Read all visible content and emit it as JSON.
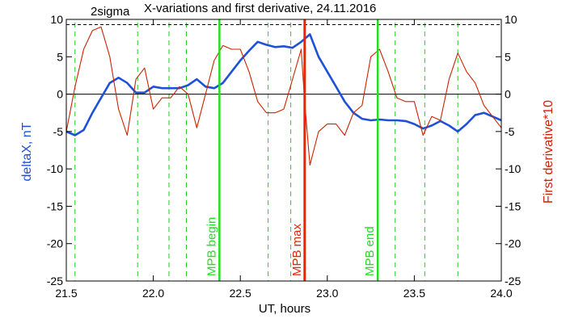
{
  "chart_data": {
    "type": "line",
    "title": "X-variations and first derivative, 24.11.2016",
    "subtitle": "2sigma",
    "xlabel": "UT, hours",
    "ylabel_left": "deltaX, nT",
    "ylabel_right": "First derivative*10",
    "xlim": [
      21.5,
      24.0
    ],
    "ylim": [
      -25,
      10
    ],
    "x_ticks": [
      "21.5",
      "22.0",
      "22.5",
      "23.0",
      "23.5",
      "24.0"
    ],
    "y_ticks": [
      "10",
      "5",
      "0",
      "-5",
      "-10",
      "-15",
      "-20",
      "-25"
    ],
    "colors": {
      "deltaX": "#1f50d8",
      "derivative": "#cc2200",
      "mpb_edges": "#22dd22",
      "mpb_max": "#ee2200",
      "sigma_lines": "#22cc22"
    },
    "dashed_reference": {
      "y": 9.3
    },
    "sigma_lines_x": [
      21.55,
      21.91,
      22.09,
      22.19,
      22.66,
      22.79,
      23.39,
      23.56,
      23.75
    ],
    "markers": [
      {
        "name": "MPB begin",
        "x": 22.38,
        "color": "#22dd22"
      },
      {
        "name": "MPB max",
        "x": 22.87,
        "color": "#ee2200"
      },
      {
        "name": "MPB end",
        "x": 23.29,
        "color": "#22dd22"
      }
    ],
    "series": [
      {
        "name": "deltaX",
        "color": "#1f50d8",
        "x": [
          21.5,
          21.55,
          21.6,
          21.65,
          21.7,
          21.75,
          21.8,
          21.85,
          21.9,
          21.95,
          22.0,
          22.05,
          22.1,
          22.15,
          22.2,
          22.25,
          22.3,
          22.35,
          22.4,
          22.45,
          22.5,
          22.55,
          22.6,
          22.65,
          22.7,
          22.75,
          22.8,
          22.85,
          22.9,
          22.95,
          23.0,
          23.05,
          23.1,
          23.15,
          23.2,
          23.25,
          23.3,
          23.35,
          23.4,
          23.45,
          23.5,
          23.55,
          23.6,
          23.65,
          23.7,
          23.75,
          23.8,
          23.85,
          23.9,
          23.95,
          24.0
        ],
        "values": [
          -5.0,
          -5.5,
          -4.8,
          -2.5,
          -0.5,
          1.5,
          2.2,
          1.5,
          0.2,
          0.2,
          1.0,
          0.8,
          0.8,
          0.8,
          1.2,
          2.0,
          1.0,
          0.8,
          1.5,
          3.0,
          4.5,
          5.8,
          7.0,
          6.6,
          6.3,
          6.4,
          6.2,
          7.0,
          8.0,
          5.0,
          3.0,
          1.0,
          -1.0,
          -2.5,
          -3.3,
          -3.5,
          -3.4,
          -3.5,
          -3.5,
          -3.6,
          -4.0,
          -4.6,
          -4.2,
          -3.6,
          -4.2,
          -5.0,
          -4.0,
          -2.8,
          -2.5,
          -3.0,
          -3.5
        ]
      },
      {
        "name": "First derivative*10",
        "color": "#cc2200",
        "x": [
          21.5,
          21.55,
          21.6,
          21.65,
          21.7,
          21.75,
          21.8,
          21.85,
          21.9,
          21.95,
          22.0,
          22.05,
          22.1,
          22.15,
          22.2,
          22.25,
          22.3,
          22.35,
          22.4,
          22.45,
          22.5,
          22.55,
          22.6,
          22.65,
          22.7,
          22.75,
          22.8,
          22.85,
          22.87,
          22.9,
          22.95,
          23.0,
          23.05,
          23.1,
          23.15,
          23.2,
          23.25,
          23.3,
          23.35,
          23.4,
          23.45,
          23.5,
          23.55,
          23.6,
          23.65,
          23.7,
          23.75,
          23.8,
          23.85,
          23.9,
          23.95,
          24.0
        ],
        "values": [
          -5.0,
          1.0,
          6.0,
          8.5,
          9.0,
          5.0,
          -2.0,
          -5.5,
          2.0,
          3.5,
          -2.0,
          -0.5,
          -0.5,
          1.0,
          0.0,
          -4.5,
          0.0,
          4.5,
          6.5,
          6.0,
          6.0,
          3.0,
          -1.0,
          -2.5,
          -2.5,
          -2.0,
          2.0,
          6.0,
          -1.0,
          -9.5,
          -5.0,
          -4.0,
          -4.0,
          -5.5,
          -2.5,
          -1.5,
          5.0,
          6.0,
          3.0,
          -0.5,
          -1.0,
          -1.0,
          -5.5,
          -3.0,
          -3.5,
          2.0,
          5.5,
          3.0,
          1.5,
          -1.5,
          -3.0,
          -4.5
        ]
      }
    ]
  }
}
